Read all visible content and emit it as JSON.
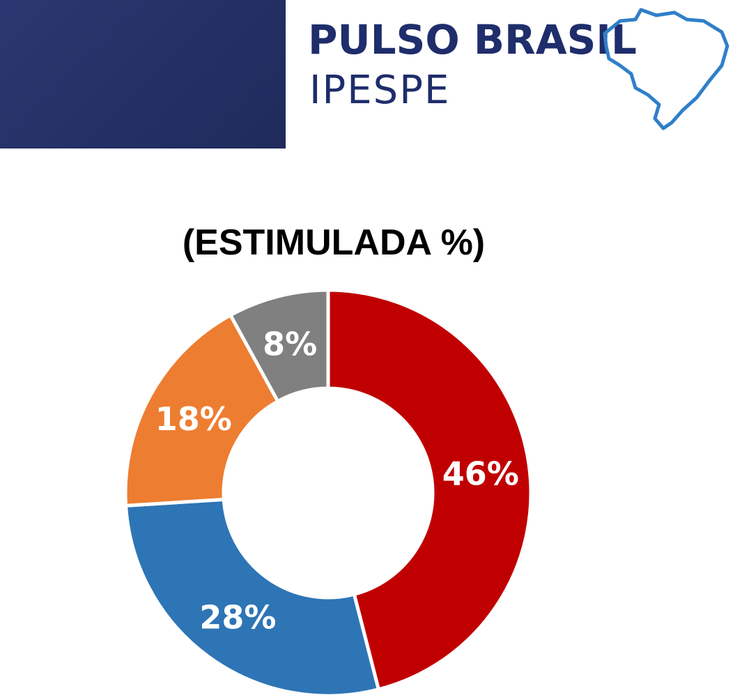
{
  "brand": {
    "line1": "PULSO BRASIL",
    "line2": "IPESPE",
    "icon": "brazil-map-outline-icon",
    "colors": {
      "navy": "#1f2d6b",
      "band": "#263266",
      "map_stroke": "#2f7fc9"
    }
  },
  "chart_data": {
    "type": "pie",
    "title": "(ESTIMULADA %)",
    "donut": true,
    "slices": [
      {
        "label": "46%",
        "value": 46,
        "color": "#c00000"
      },
      {
        "label": "28%",
        "value": 28,
        "color": "#2e75b6"
      },
      {
        "label": "18%",
        "value": 18,
        "color": "#ed7d31"
      },
      {
        "label": "8%",
        "value": 8,
        "color": "#808080"
      }
    ],
    "start": "top",
    "direction": "clockwise",
    "legend": "none"
  }
}
